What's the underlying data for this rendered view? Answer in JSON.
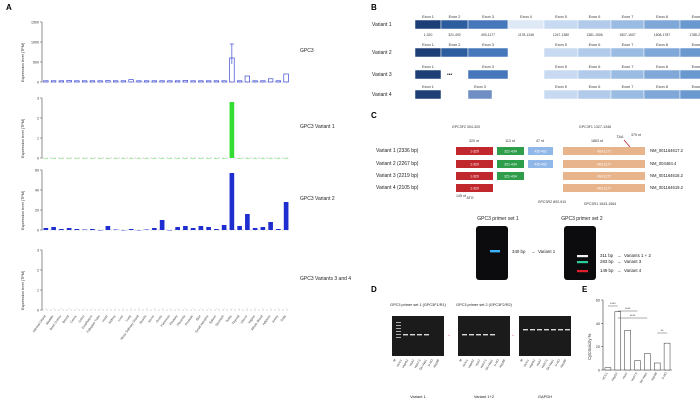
{
  "panels": {
    "A": "A",
    "B": "B",
    "C": "C",
    "D": "D",
    "E": "E"
  },
  "panelA": {
    "ylabel": "Expression level (TPM)",
    "charts": [
      {
        "title": "GPC3",
        "ticks": [
          "0",
          "500",
          "1000",
          "1500"
        ]
      },
      {
        "title": "GPC3 Variant 1",
        "ticks": [
          "0",
          "1",
          "2",
          "3"
        ]
      },
      {
        "title": "GPC3 Variant 2",
        "ticks": [
          "0",
          "20",
          "40",
          "60"
        ]
      },
      {
        "title": "GPC3 Variants 3 and 4",
        "ticks": [
          "0",
          "1",
          "2",
          "3"
        ]
      }
    ],
    "tissues": [
      "Adrenal Gland",
      "Bladder",
      "Brain Cortex",
      "Breast",
      "Cervix",
      "Colon",
      "Esophagus",
      "Fallopian Tube",
      "Heart",
      "Kidney",
      "Liver",
      "Lung",
      "Minor Salivary Gland",
      "Muscle",
      "Nerve",
      "Ovary",
      "Pancreas",
      "Pituitary",
      "Placenta",
      "Prostate",
      "Skin",
      "Small Intestine",
      "Spleen",
      "Stomach",
      "Testis",
      "Thyroid",
      "Uterus",
      "Vagina",
      "Whole Blood",
      "Adipose",
      "Artery",
      "Cells"
    ]
  },
  "chart_data": [
    {
      "type": "bar",
      "title": "GPC3",
      "ylabel": "Expression level (TPM)",
      "ylim": [
        0,
        1500
      ],
      "values": [
        20,
        30,
        15,
        40,
        10,
        25,
        20,
        15,
        35,
        30,
        10,
        60,
        20,
        15,
        30,
        20,
        25,
        30,
        40,
        20,
        15,
        25,
        30,
        20,
        600,
        30,
        150,
        20,
        10,
        80,
        20,
        200
      ]
    },
    {
      "type": "bar",
      "title": "GPC3 Variant 1",
      "ylabel": "Expression level (TPM)",
      "ylim": [
        0,
        3
      ],
      "values": [
        0,
        0,
        0,
        0,
        0,
        0,
        0,
        0,
        0,
        0,
        0,
        0,
        0,
        0,
        0,
        0,
        0,
        0,
        0,
        0,
        0,
        0,
        0,
        0,
        2.8,
        0,
        0,
        0,
        0,
        0,
        0,
        0
      ]
    },
    {
      "type": "bar",
      "title": "GPC3 Variant 2",
      "ylabel": "Expression level (TPM)",
      "ylim": [
        0,
        60
      ],
      "values": [
        2,
        3,
        1,
        2,
        1,
        0.5,
        1,
        0,
        4,
        0.5,
        0,
        1,
        0,
        0.5,
        2,
        10,
        0,
        3,
        4,
        2,
        4,
        3,
        1,
        5,
        57,
        4,
        16,
        2,
        3,
        8,
        1,
        28
      ]
    },
    {
      "type": "bar",
      "title": "GPC3 Variants 3 and 4",
      "ylabel": "Expression level (TPM)",
      "ylim": [
        0,
        3
      ],
      "values": [
        0,
        0,
        0,
        0,
        0,
        0,
        0,
        0,
        0,
        0,
        0,
        0,
        0,
        0,
        0,
        0,
        0,
        0,
        0,
        0,
        0,
        0,
        0,
        0,
        0,
        0,
        0,
        0,
        0,
        0,
        0,
        0
      ]
    },
    {
      "type": "bar",
      "title": "E",
      "ylabel": "Cytotoxicity %",
      "ylim": [
        0,
        60
      ],
      "categories": [
        "HCC1",
        "HepG2",
        "Huh7",
        "Huh7.5",
        "SK-Hep1",
        "Hep3B",
        "U-HO"
      ],
      "values": [
        2,
        50,
        34,
        8,
        14,
        6,
        23
      ],
      "significance": [
        "****",
        "****",
        "****",
        "**"
      ]
    }
  ],
  "panelB": {
    "variants": [
      "Variant 1",
      "Variant 2",
      "Variant 3",
      "Variant 4"
    ],
    "exons": [
      "Exon 1",
      "Exon 2",
      "Exon 3",
      "Exon 4",
      "Exon 5",
      "Exon 6",
      "Exon 7",
      "Exon 8",
      "Exon 9"
    ],
    "ranges": [
      "1-320",
      "321-492",
      "493-1177",
      "1178-1246",
      "1247-1380",
      "1381-1506",
      "1507-1607",
      "1608-1787",
      "1788-2336"
    ]
  },
  "panelC": {
    "rows": [
      {
        "label": "Variant 1 (2336 bp)",
        "nm": "NM_001164617.2",
        "segs": [
          "1-320",
          "321-434",
          "435-492",
          "",
          "493-1177"
        ]
      },
      {
        "label": "Variant 2 (2267 bp)",
        "nm": "NM_004484.4",
        "segs": [
          "1-320",
          "321-434",
          "435-492",
          "",
          "493-1177"
        ]
      },
      {
        "label": "Variant 3 (2219 bp)",
        "nm": "NM_001164618.2",
        "segs": [
          "1-320",
          "321-434",
          "",
          "",
          "493-1177"
        ]
      },
      {
        "label": "Variant 4 (2105 bp)",
        "nm": "NM_001164619.2",
        "segs": [
          "1-320",
          "",
          "",
          "",
          "493-1177"
        ]
      }
    ],
    "tops": [
      "GPC3F2 304-320",
      "320 nt",
      "113 nt",
      "47 nt",
      "GPC3F1 1327-1346",
      "1863 nt",
      "TAA",
      "379 nt"
    ],
    "bottoms": [
      "145 nt",
      "ATG",
      "GPC3R2 892-910",
      "GPC3R1 1543-1564"
    ],
    "gel1": {
      "title": "GPC3 primer set 1",
      "band": "340 bp",
      "label": "Variant 1"
    },
    "gel2": {
      "title": "GPC3 primer set 2",
      "bands": [
        "311 bp",
        "283 bp",
        "149 bp"
      ],
      "labels": [
        "Variants 1 + 2",
        "Variant 3",
        "Variant 4"
      ]
    }
  },
  "panelD": {
    "titles": [
      "GPC3 primer set 1 (GPC3F1/R1)",
      "GPC3 primer set 2 (GPC3F2/R2)",
      ""
    ],
    "captions": [
      "Variant 1",
      "Variant 1+2",
      "GAPDH"
    ],
    "lanes": [
      "M",
      "HCC1",
      "HepG2",
      "Huh7",
      "Huh7.5",
      "SK-Hep1",
      "U-HO",
      "Hep3B"
    ]
  },
  "colors": {
    "blue": "#1f2fcf",
    "green": "#33dd33",
    "red": "#c0282e",
    "teal": "#2e9e4b",
    "lightblue": "#8fb7e8",
    "orange": "#e8b48c",
    "navy": "#1a3c6e"
  }
}
